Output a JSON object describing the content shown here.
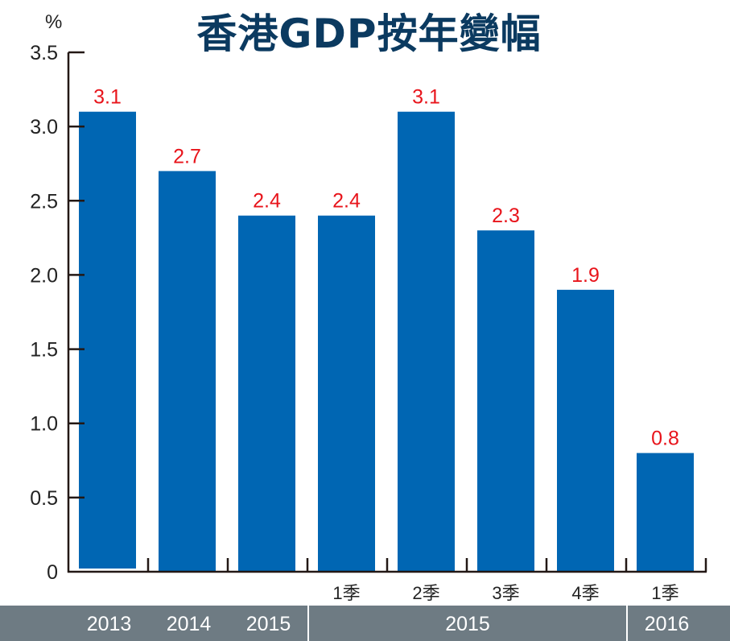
{
  "chart_data": {
    "type": "bar",
    "title": "香港GDP按年變幅",
    "ylabel": "%",
    "xlabel": "",
    "ylim": [
      0,
      3.5
    ],
    "yticks": [
      "0",
      "0.5",
      "1.0",
      "1.5",
      "2.0",
      "2.5",
      "3.0",
      "3.5"
    ],
    "categories": [
      "2013",
      "2014",
      "2015",
      "1季",
      "2季",
      "3季",
      "4季",
      "1季"
    ],
    "values": [
      3.1,
      2.7,
      2.4,
      2.4,
      3.1,
      2.3,
      1.9,
      0.8
    ],
    "value_labels": [
      "3.1",
      "2.7",
      "2.4",
      "2.4",
      "3.1",
      "2.3",
      "1.9",
      "0.8"
    ],
    "category_labels_upper": [
      "",
      "",
      "",
      "1季",
      "2季",
      "3季",
      "4季",
      "1季"
    ],
    "group_labels": [
      {
        "label": "2013",
        "span": [
          0,
          0
        ]
      },
      {
        "label": "2014",
        "span": [
          1,
          1
        ]
      },
      {
        "label": "2015",
        "span": [
          2,
          2
        ]
      },
      {
        "label": "2015",
        "span": [
          3,
          6
        ]
      },
      {
        "label": "2016",
        "span": [
          7,
          7
        ]
      }
    ],
    "grid": false,
    "colors": {
      "bar": "#0066b3",
      "value_label": "#e8141b",
      "title": "#0b3a60",
      "band": "#6e7b83"
    }
  }
}
